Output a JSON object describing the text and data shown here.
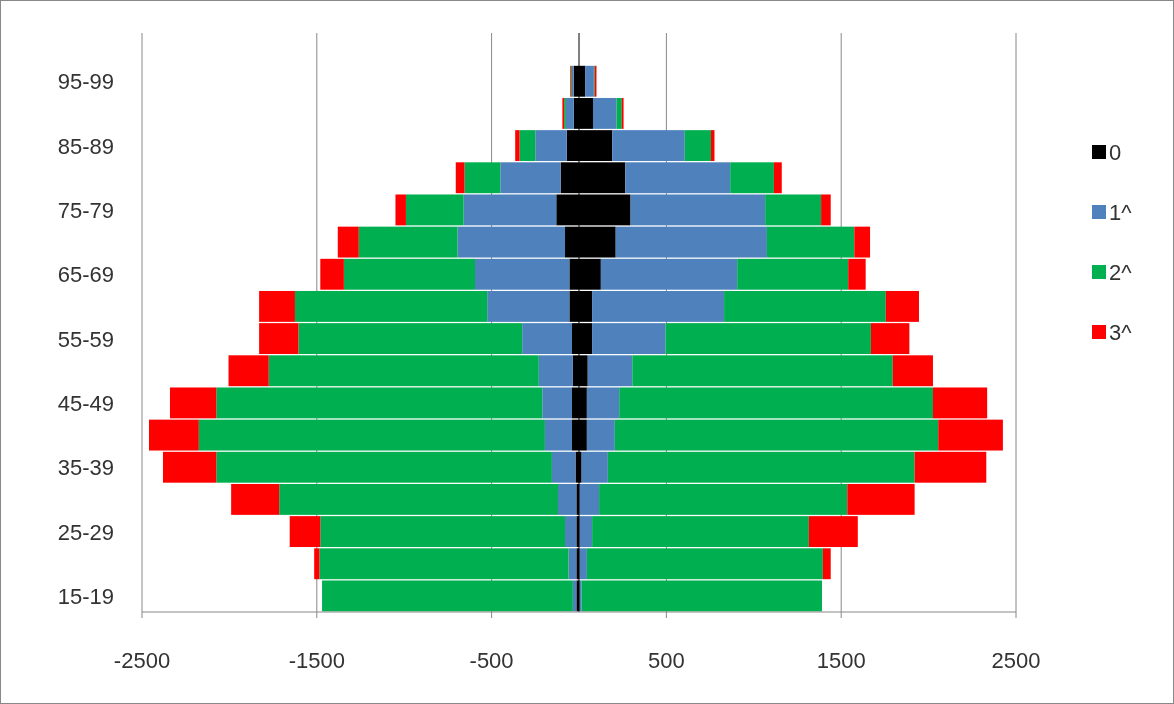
{
  "chart_data": {
    "type": "bar",
    "orientation": "horizontal",
    "stacked": true,
    "categories": [
      null,
      "95-99",
      null,
      "85-89",
      null,
      "75-79",
      null,
      "65-69",
      null,
      "55-59",
      null,
      "45-49",
      null,
      "35-39",
      null,
      "25-29",
      null,
      "15-19"
    ],
    "series": [
      {
        "name": "0",
        "color": "#000000",
        "values": [
          null,
          35,
          80,
          190,
          265,
          295,
          210,
          125,
          75,
          75,
          50,
          45,
          45,
          15,
          null,
          null,
          null,
          null
        ]
      },
      {
        "color": "#000000",
        "values": [
          null,
          -30,
          -30,
          -70,
          -105,
          -130,
          -80,
          -55,
          -55,
          -40,
          -35,
          -40,
          -40,
          -20,
          -15,
          -15,
          -15,
          -15
        ]
      },
      {
        "name": "1^",
        "color": "#4f81bd",
        "values": [
          null,
          50,
          135,
          415,
          600,
          770,
          865,
          780,
          755,
          420,
          255,
          185,
          160,
          150,
          115,
          75,
          45,
          15
        ]
      },
      {
        "color": "#4f81bd",
        "values": [
          null,
          -10,
          -45,
          -180,
          -345,
          -530,
          -615,
          -540,
          -470,
          -285,
          -195,
          -170,
          -155,
          -135,
          -105,
          -65,
          -45,
          -20
        ]
      },
      {
        "name": "2^",
        "color": "#00b050",
        "values": [
          null,
          5,
          30,
          150,
          250,
          320,
          500,
          635,
          925,
          1175,
          1490,
          1795,
          1850,
          1755,
          1420,
          1240,
          1350,
          1375
        ]
      },
      {
        "color": "#00b050",
        "values": [
          null,
          -5,
          -10,
          -90,
          -205,
          -330,
          -565,
          -750,
          -1100,
          -1280,
          -1545,
          -1865,
          -1980,
          -1920,
          -1595,
          -1400,
          -1425,
          -1435
        ]
      },
      {
        "name": "3^",
        "color": "#ff0000",
        "values": [
          null,
          10,
          10,
          20,
          45,
          55,
          90,
          100,
          190,
          220,
          230,
          310,
          370,
          410,
          385,
          280,
          45,
          0
        ]
      },
      {
        "color": "#ff0000",
        "values": [
          null,
          -5,
          -10,
          -25,
          -50,
          -60,
          -120,
          -135,
          -205,
          -225,
          -230,
          -265,
          -285,
          -305,
          -275,
          -175,
          -30,
          0
        ]
      }
    ],
    "xlim": [
      -2500,
      2500
    ],
    "xticks": [
      -2500,
      -1500,
      -500,
      500,
      1500,
      2500
    ],
    "grid": "x",
    "legend": "right"
  }
}
